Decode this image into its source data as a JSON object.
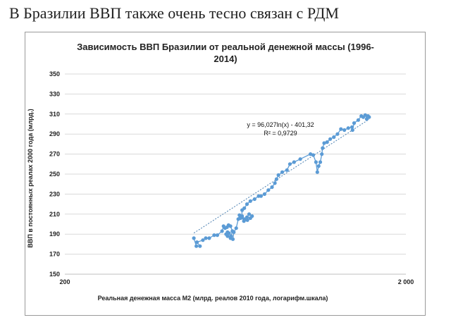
{
  "slide": {
    "title": "В Бразилии ВВП также очень тесно связан с РДМ"
  },
  "chart_data": {
    "type": "scatter",
    "title_lines": [
      "Зависимость ВВП Бразилии от реальной денежной массы (1996-",
      "2014)"
    ],
    "xlabel": "Реальная денежная масса М2 (млрд. реалов 2010 года, логарифм.шкала)",
    "ylabel": "ВВП в постоянных реалах 2000 года (млрд.)",
    "x_scale": "log",
    "xlim": [
      200,
      2000
    ],
    "ylim": [
      150,
      350
    ],
    "x_ticks": [
      200,
      2000
    ],
    "x_tick_labels": [
      "200",
      "2 000"
    ],
    "y_ticks": [
      150,
      170,
      190,
      210,
      230,
      250,
      270,
      290,
      310,
      330,
      350
    ],
    "y_tick_labels": [
      "150",
      "170",
      "190",
      "210",
      "230",
      "250",
      "270",
      "290",
      "310",
      "330",
      "350"
    ],
    "grid": "horizontal",
    "trendline": {
      "type": "logarithmic",
      "a": 96.027,
      "b": -401.32
    },
    "annotations": [
      "y = 96,027ln(x) - 401,32",
      "R² = 0,9729"
    ],
    "colors": {
      "series": "#5b9bd5",
      "trendline": "#4a7fb0",
      "grid": "#d9d9d9"
    },
    "series": [
      {
        "points": [
          [
            478,
            186
          ],
          [
            486,
            178
          ],
          [
            498,
            178
          ],
          [
            488,
            182
          ],
          [
            508,
            184
          ],
          [
            518,
            186
          ],
          [
            530,
            186
          ],
          [
            548,
            189
          ],
          [
            560,
            189
          ],
          [
            578,
            193
          ],
          [
            584,
            198
          ],
          [
            590,
            196
          ],
          [
            598,
            197
          ],
          [
            604,
            199
          ],
          [
            612,
            198
          ],
          [
            620,
            193
          ],
          [
            614,
            188
          ],
          [
            606,
            191
          ],
          [
            600,
            192
          ],
          [
            594,
            190
          ],
          [
            600,
            188
          ],
          [
            612,
            186
          ],
          [
            622,
            185
          ],
          [
            626,
            192
          ],
          [
            636,
            196
          ],
          [
            645,
            205
          ],
          [
            650,
            209
          ],
          [
            655,
            206
          ],
          [
            662,
            208
          ],
          [
            672,
            205
          ],
          [
            684,
            207
          ],
          [
            694,
            210
          ],
          [
            708,
            208
          ],
          [
            700,
            206
          ],
          [
            686,
            204
          ],
          [
            670,
            203
          ],
          [
            660,
            207
          ],
          [
            662,
            214
          ],
          [
            672,
            216
          ],
          [
            684,
            220
          ],
          [
            700,
            223
          ],
          [
            720,
            225
          ],
          [
            740,
            228
          ],
          [
            752,
            228
          ],
          [
            770,
            230
          ],
          [
            790,
            234
          ],
          [
            810,
            237
          ],
          [
            826,
            241
          ],
          [
            835,
            245
          ],
          [
            846,
            249
          ],
          [
            868,
            252
          ],
          [
            896,
            254
          ],
          [
            914,
            260
          ],
          [
            940,
            262
          ],
          [
            980,
            265
          ],
          [
            1050,
            270
          ],
          [
            1070,
            269
          ],
          [
            1090,
            262
          ],
          [
            1100,
            252
          ],
          [
            1110,
            258
          ],
          [
            1122,
            262
          ],
          [
            1134,
            270
          ],
          [
            1140,
            276
          ],
          [
            1152,
            281
          ],
          [
            1175,
            282
          ],
          [
            1200,
            285
          ],
          [
            1230,
            287
          ],
          [
            1260,
            290
          ],
          [
            1290,
            295
          ],
          [
            1320,
            294
          ],
          [
            1355,
            296
          ],
          [
            1390,
            297
          ],
          [
            1395,
            294
          ],
          [
            1410,
            301
          ],
          [
            1450,
            304
          ],
          [
            1480,
            308
          ],
          [
            1500,
            307
          ],
          [
            1520,
            309
          ],
          [
            1535,
            305
          ],
          [
            1548,
            308
          ],
          [
            1560,
            307
          ]
        ]
      }
    ]
  }
}
